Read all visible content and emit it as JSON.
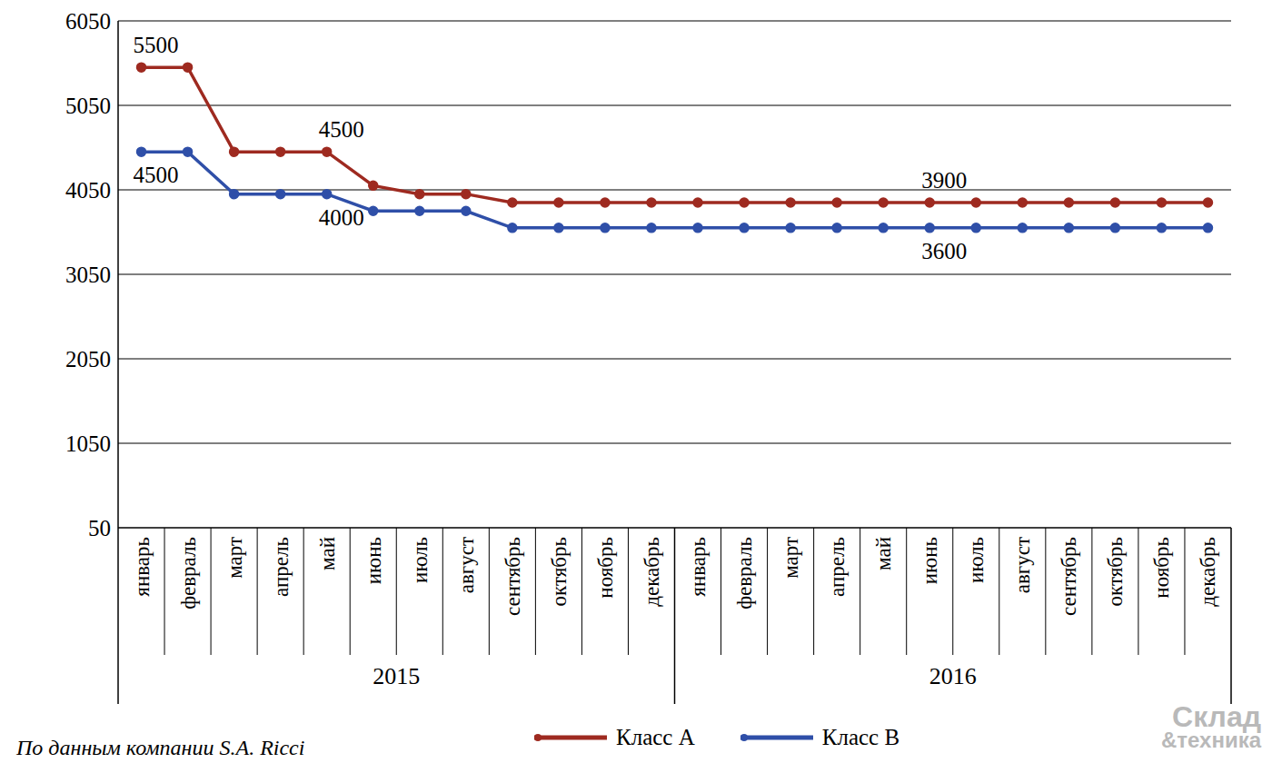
{
  "chart_data": {
    "type": "line",
    "categories": [
      "январь",
      "февраль",
      "март",
      "апрель",
      "май",
      "июнь",
      "июль",
      "август",
      "сентябрь",
      "октябрь",
      "ноябрь",
      "декабрь",
      "январь",
      "февраль",
      "март",
      "апрель",
      "май",
      "июнь",
      "июль",
      "август",
      "сентябрь",
      "октябрь",
      "ноябрь",
      "декабрь"
    ],
    "groups": [
      {
        "label": "2015",
        "count": 12
      },
      {
        "label": "2016",
        "count": 12
      }
    ],
    "series": [
      {
        "name": "Класс А",
        "color": "#9e2a20",
        "marker": "circle",
        "values": [
          5500,
          5500,
          4500,
          4500,
          4500,
          4100,
          4000,
          4000,
          3900,
          3900,
          3900,
          3900,
          3900,
          3900,
          3900,
          3900,
          3900,
          3900,
          3900,
          3900,
          3900,
          3900,
          3900,
          3900
        ],
        "value_labels": [
          "5500",
          null,
          null,
          null,
          "4500",
          null,
          null,
          null,
          null,
          null,
          null,
          null,
          null,
          null,
          null,
          null,
          null,
          "3900",
          null,
          null,
          null,
          null,
          null,
          null
        ]
      },
      {
        "name": "Класс В",
        "color": "#2f4fa8",
        "marker": "circle",
        "values": [
          4500,
          4500,
          4000,
          4000,
          4000,
          3800,
          3800,
          3800,
          3600,
          3600,
          3600,
          3600,
          3600,
          3600,
          3600,
          3600,
          3600,
          3600,
          3600,
          3600,
          3600,
          3600,
          3600,
          3600
        ],
        "value_labels": [
          "4500",
          null,
          null,
          null,
          "4000",
          null,
          null,
          null,
          null,
          null,
          null,
          null,
          null,
          null,
          null,
          null,
          null,
          "3600",
          null,
          null,
          null,
          null,
          null,
          null
        ]
      }
    ],
    "ylim": [
      50,
      6050
    ],
    "yticks": [
      50,
      1050,
      2050,
      3050,
      4050,
      5050,
      6050
    ],
    "grid": true,
    "legend": "bottom",
    "data_labels": true,
    "source": "По данным компании S.A. Ricci",
    "watermark": [
      "Склад",
      "&техника"
    ]
  }
}
